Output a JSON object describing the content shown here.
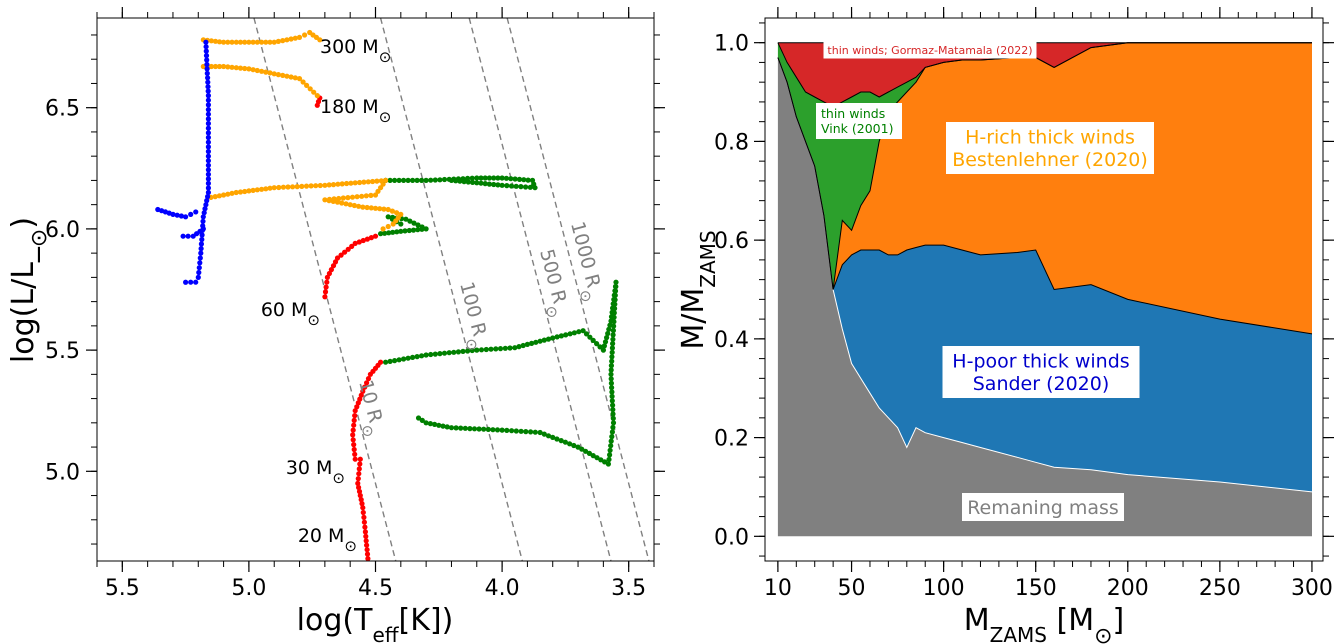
{
  "chart_data": [
    {
      "type": "scatter",
      "title": "",
      "xlabel": "log(T_eff[K])",
      "ylabel": "log(L/L_⊙)",
      "xlim": [
        5.6,
        3.4
      ],
      "ylim": [
        4.63,
        6.87
      ],
      "x_ticks": [
        "5.5",
        "5.0",
        "4.5",
        "4.0",
        "3.5"
      ],
      "y_ticks": [
        "5.0",
        "5.5",
        "6.0",
        "6.5"
      ],
      "phase_colors": {
        "red": "#ff0000",
        "green": "#008000",
        "orange": "#ffa500",
        "blue": "#0000ff"
      },
      "radius_lines": [
        {
          "label": "10 R⊙",
          "x_at_top": 4.98,
          "x_at_bottom": 4.42
        },
        {
          "label": "100 R⊙",
          "x_at_top": 4.48,
          "x_at_bottom": 3.92
        },
        {
          "label": "500 R⊙",
          "x_at_top": 4.13,
          "x_at_bottom": 3.57
        },
        {
          "label": "1000 R⊙",
          "x_at_top": 3.98,
          "x_at_bottom": 3.42
        }
      ],
      "tracks": [
        {
          "label": "20 M⊙",
          "segments": [
            {
              "color": "red",
              "points": [
                [
                  4.53,
                  4.64
                ],
                [
                  4.54,
                  4.75
                ],
                [
                  4.55,
                  4.85
                ],
                [
                  4.57,
                  4.95
                ],
                [
                  4.56,
                  5.05
                ]
              ]
            }
          ]
        },
        {
          "label": "30 M⊙",
          "segments": [
            {
              "color": "red",
              "points": [
                [
                  4.58,
                  5.05
                ],
                [
                  4.59,
                  5.15
                ],
                [
                  4.58,
                  5.25
                ],
                [
                  4.55,
                  5.33
                ],
                [
                  4.52,
                  5.4
                ],
                [
                  4.48,
                  5.45
                ]
              ]
            },
            {
              "color": "green",
              "points": [
                [
                  4.46,
                  5.45
                ],
                [
                  4.3,
                  5.48
                ],
                [
                  4.1,
                  5.5
                ],
                [
                  3.95,
                  5.51
                ],
                [
                  3.8,
                  5.55
                ],
                [
                  3.68,
                  5.58
                ],
                [
                  3.6,
                  5.5
                ],
                [
                  3.57,
                  5.62
                ],
                [
                  3.55,
                  5.78
                ],
                [
                  3.57,
                  5.4
                ],
                [
                  3.56,
                  5.2
                ],
                [
                  3.58,
                  5.03
                ],
                [
                  3.7,
                  5.1
                ],
                [
                  3.85,
                  5.16
                ],
                [
                  4.0,
                  5.17
                ],
                [
                  4.2,
                  5.18
                ],
                [
                  4.3,
                  5.2
                ],
                [
                  4.33,
                  5.22
                ]
              ]
            }
          ]
        },
        {
          "label": "60 M⊙",
          "segments": [
            {
              "color": "red",
              "points": [
                [
                  4.7,
                  5.72
                ],
                [
                  4.69,
                  5.8
                ],
                [
                  4.65,
                  5.88
                ],
                [
                  4.58,
                  5.94
                ],
                [
                  4.5,
                  5.97
                ]
              ]
            },
            {
              "color": "green",
              "points": [
                [
                  4.48,
                  5.98
                ],
                [
                  4.4,
                  5.99
                ],
                [
                  4.3,
                  6.0
                ],
                [
                  4.38,
                  6.04
                ],
                [
                  4.45,
                  6.05
                ],
                [
                  4.4,
                  6.02
                ]
              ]
            },
            {
              "color": "orange",
              "points": [
                [
                  4.47,
                  6.0
                ],
                [
                  4.43,
                  6.02
                ],
                [
                  4.4,
                  6.06
                ],
                [
                  4.45,
                  6.08
                ],
                [
                  4.55,
                  6.09
                ],
                [
                  4.65,
                  6.11
                ],
                [
                  4.7,
                  6.12
                ],
                [
                  4.5,
                  6.14
                ],
                [
                  4.46,
                  6.2
                ]
              ]
            },
            {
              "color": "green",
              "points": [
                [
                  4.46,
                  6.2
                ],
                [
                  4.3,
                  6.2
                ],
                [
                  4.1,
                  6.21
                ],
                [
                  4.0,
                  6.21
                ],
                [
                  3.88,
                  6.2
                ],
                [
                  3.87,
                  6.17
                ],
                [
                  4.0,
                  6.18
                ],
                [
                  4.1,
                  6.19
                ],
                [
                  4.2,
                  6.2
                ]
              ]
            },
            {
              "color": "orange",
              "points": [
                [
                  4.46,
                  6.2
                ],
                [
                  4.7,
                  6.18
                ],
                [
                  4.9,
                  6.17
                ],
                [
                  5.05,
                  6.15
                ],
                [
                  5.15,
                  6.13
                ]
              ]
            }
          ]
        },
        {
          "label": "180 M⊙",
          "segments": [
            {
              "color": "red",
              "points": [
                [
                  4.73,
                  6.51
                ],
                [
                  4.72,
                  6.54
                ]
              ]
            },
            {
              "color": "orange",
              "points": [
                [
                  4.73,
                  6.55
                ],
                [
                  4.8,
                  6.62
                ],
                [
                  4.9,
                  6.64
                ],
                [
                  5.0,
                  6.66
                ],
                [
                  5.1,
                  6.67
                ],
                [
                  5.18,
                  6.67
                ]
              ]
            }
          ]
        },
        {
          "label": "300 M⊙",
          "segments": [
            {
              "color": "orange",
              "points": [
                [
                  4.72,
                  6.78
                ],
                [
                  4.76,
                  6.81
                ],
                [
                  4.8,
                  6.79
                ],
                [
                  4.9,
                  6.77
                ],
                [
                  5.0,
                  6.77
                ],
                [
                  5.1,
                  6.77
                ],
                [
                  5.18,
                  6.78
                ]
              ]
            }
          ]
        },
        {
          "label": "",
          "segments": [
            {
              "color": "blue",
              "points": [
                [
                  5.17,
                  6.77
                ],
                [
                  5.16,
                  6.55
                ],
                [
                  5.16,
                  6.3
                ],
                [
                  5.16,
                  6.15
                ],
                [
                  5.18,
                  6.05
                ],
                [
                  5.19,
                  5.9
                ],
                [
                  5.2,
                  5.8
                ],
                [
                  5.21,
                  5.78
                ],
                [
                  5.25,
                  5.78
                ]
              ]
            },
            {
              "color": "blue",
              "points": [
                [
                  5.36,
                  6.08
                ],
                [
                  5.3,
                  6.06
                ],
                [
                  5.25,
                  6.05
                ],
                [
                  5.21,
                  6.07
                ]
              ]
            },
            {
              "color": "blue",
              "points": [
                [
                  5.26,
                  5.97
                ],
                [
                  5.22,
                  5.97
                ],
                [
                  5.18,
                  6.0
                ]
              ]
            }
          ]
        }
      ]
    },
    {
      "type": "area",
      "title": "",
      "xlabel": "M_ZAMS [M⊙]",
      "ylabel": "M/M_ZAMS",
      "xlim": [
        3,
        306
      ],
      "ylim": [
        -0.05,
        1.05
      ],
      "x_ticks": [
        "10",
        "50",
        "100",
        "150",
        "200",
        "250",
        "300"
      ],
      "y_ticks": [
        "0.0",
        "0.2",
        "0.4",
        "0.6",
        "0.8",
        "1.0"
      ],
      "x": [
        10,
        15,
        20,
        25,
        30,
        35,
        40,
        45,
        50,
        55,
        60,
        65,
        70,
        75,
        80,
        85,
        90,
        100,
        110,
        120,
        140,
        150,
        160,
        180,
        200,
        250,
        300
      ],
      "series": [
        {
          "name": "Remaning mass",
          "color": "#808080",
          "values": [
            0.97,
            0.92,
            0.85,
            0.8,
            0.75,
            0.65,
            0.5,
            0.42,
            0.35,
            0.32,
            0.29,
            0.26,
            0.24,
            0.22,
            0.18,
            0.22,
            0.21,
            0.2,
            0.19,
            0.18,
            0.16,
            0.15,
            0.14,
            0.135,
            0.125,
            0.11,
            0.09
          ]
        },
        {
          "name": "H-poor thick winds\nSander (2020)",
          "color": "#1f77b4",
          "values": [
            0.97,
            0.92,
            0.85,
            0.8,
            0.75,
            0.65,
            0.5,
            0.55,
            0.57,
            0.58,
            0.58,
            0.58,
            0.57,
            0.57,
            0.58,
            0.585,
            0.59,
            0.59,
            0.58,
            0.57,
            0.575,
            0.58,
            0.5,
            0.51,
            0.48,
            0.44,
            0.41
          ]
        },
        {
          "name": "H-rich thick winds\nBestenlehner (2020)",
          "color": "#ff7f0e",
          "values": [
            0.97,
            0.92,
            0.85,
            0.8,
            0.75,
            0.65,
            0.5,
            0.64,
            0.62,
            0.67,
            0.7,
            0.8,
            0.86,
            0.88,
            0.9,
            0.92,
            0.95,
            0.96,
            0.965,
            0.965,
            0.97,
            0.97,
            0.95,
            0.99,
            1.0,
            1.0,
            1.0
          ]
        },
        {
          "name": "thin winds\nVink (2001)",
          "color": "#2ca02c",
          "values": [
            1.0,
            0.96,
            0.93,
            0.9,
            0.89,
            0.88,
            0.87,
            0.88,
            0.89,
            0.9,
            0.9,
            0.89,
            0.9,
            0.91,
            0.92,
            0.93,
            0.95,
            0.96,
            0.965,
            0.965,
            0.97,
            0.97,
            0.95,
            0.99,
            1.0,
            1.0,
            1.0
          ]
        },
        {
          "name": "thin winds; Gormaz-Matamala (2022)",
          "color": "#d62728",
          "values": [
            1.0,
            1.0,
            1.0,
            1.0,
            1.0,
            1.0,
            1.0,
            1.0,
            1.0,
            1.0,
            1.0,
            1.0,
            1.0,
            1.0,
            1.0,
            1.0,
            1.0,
            1.0,
            1.0,
            1.0,
            1.0,
            1.0,
            1.0,
            1.0,
            1.0,
            1.0,
            1.0
          ]
        }
      ]
    }
  ]
}
